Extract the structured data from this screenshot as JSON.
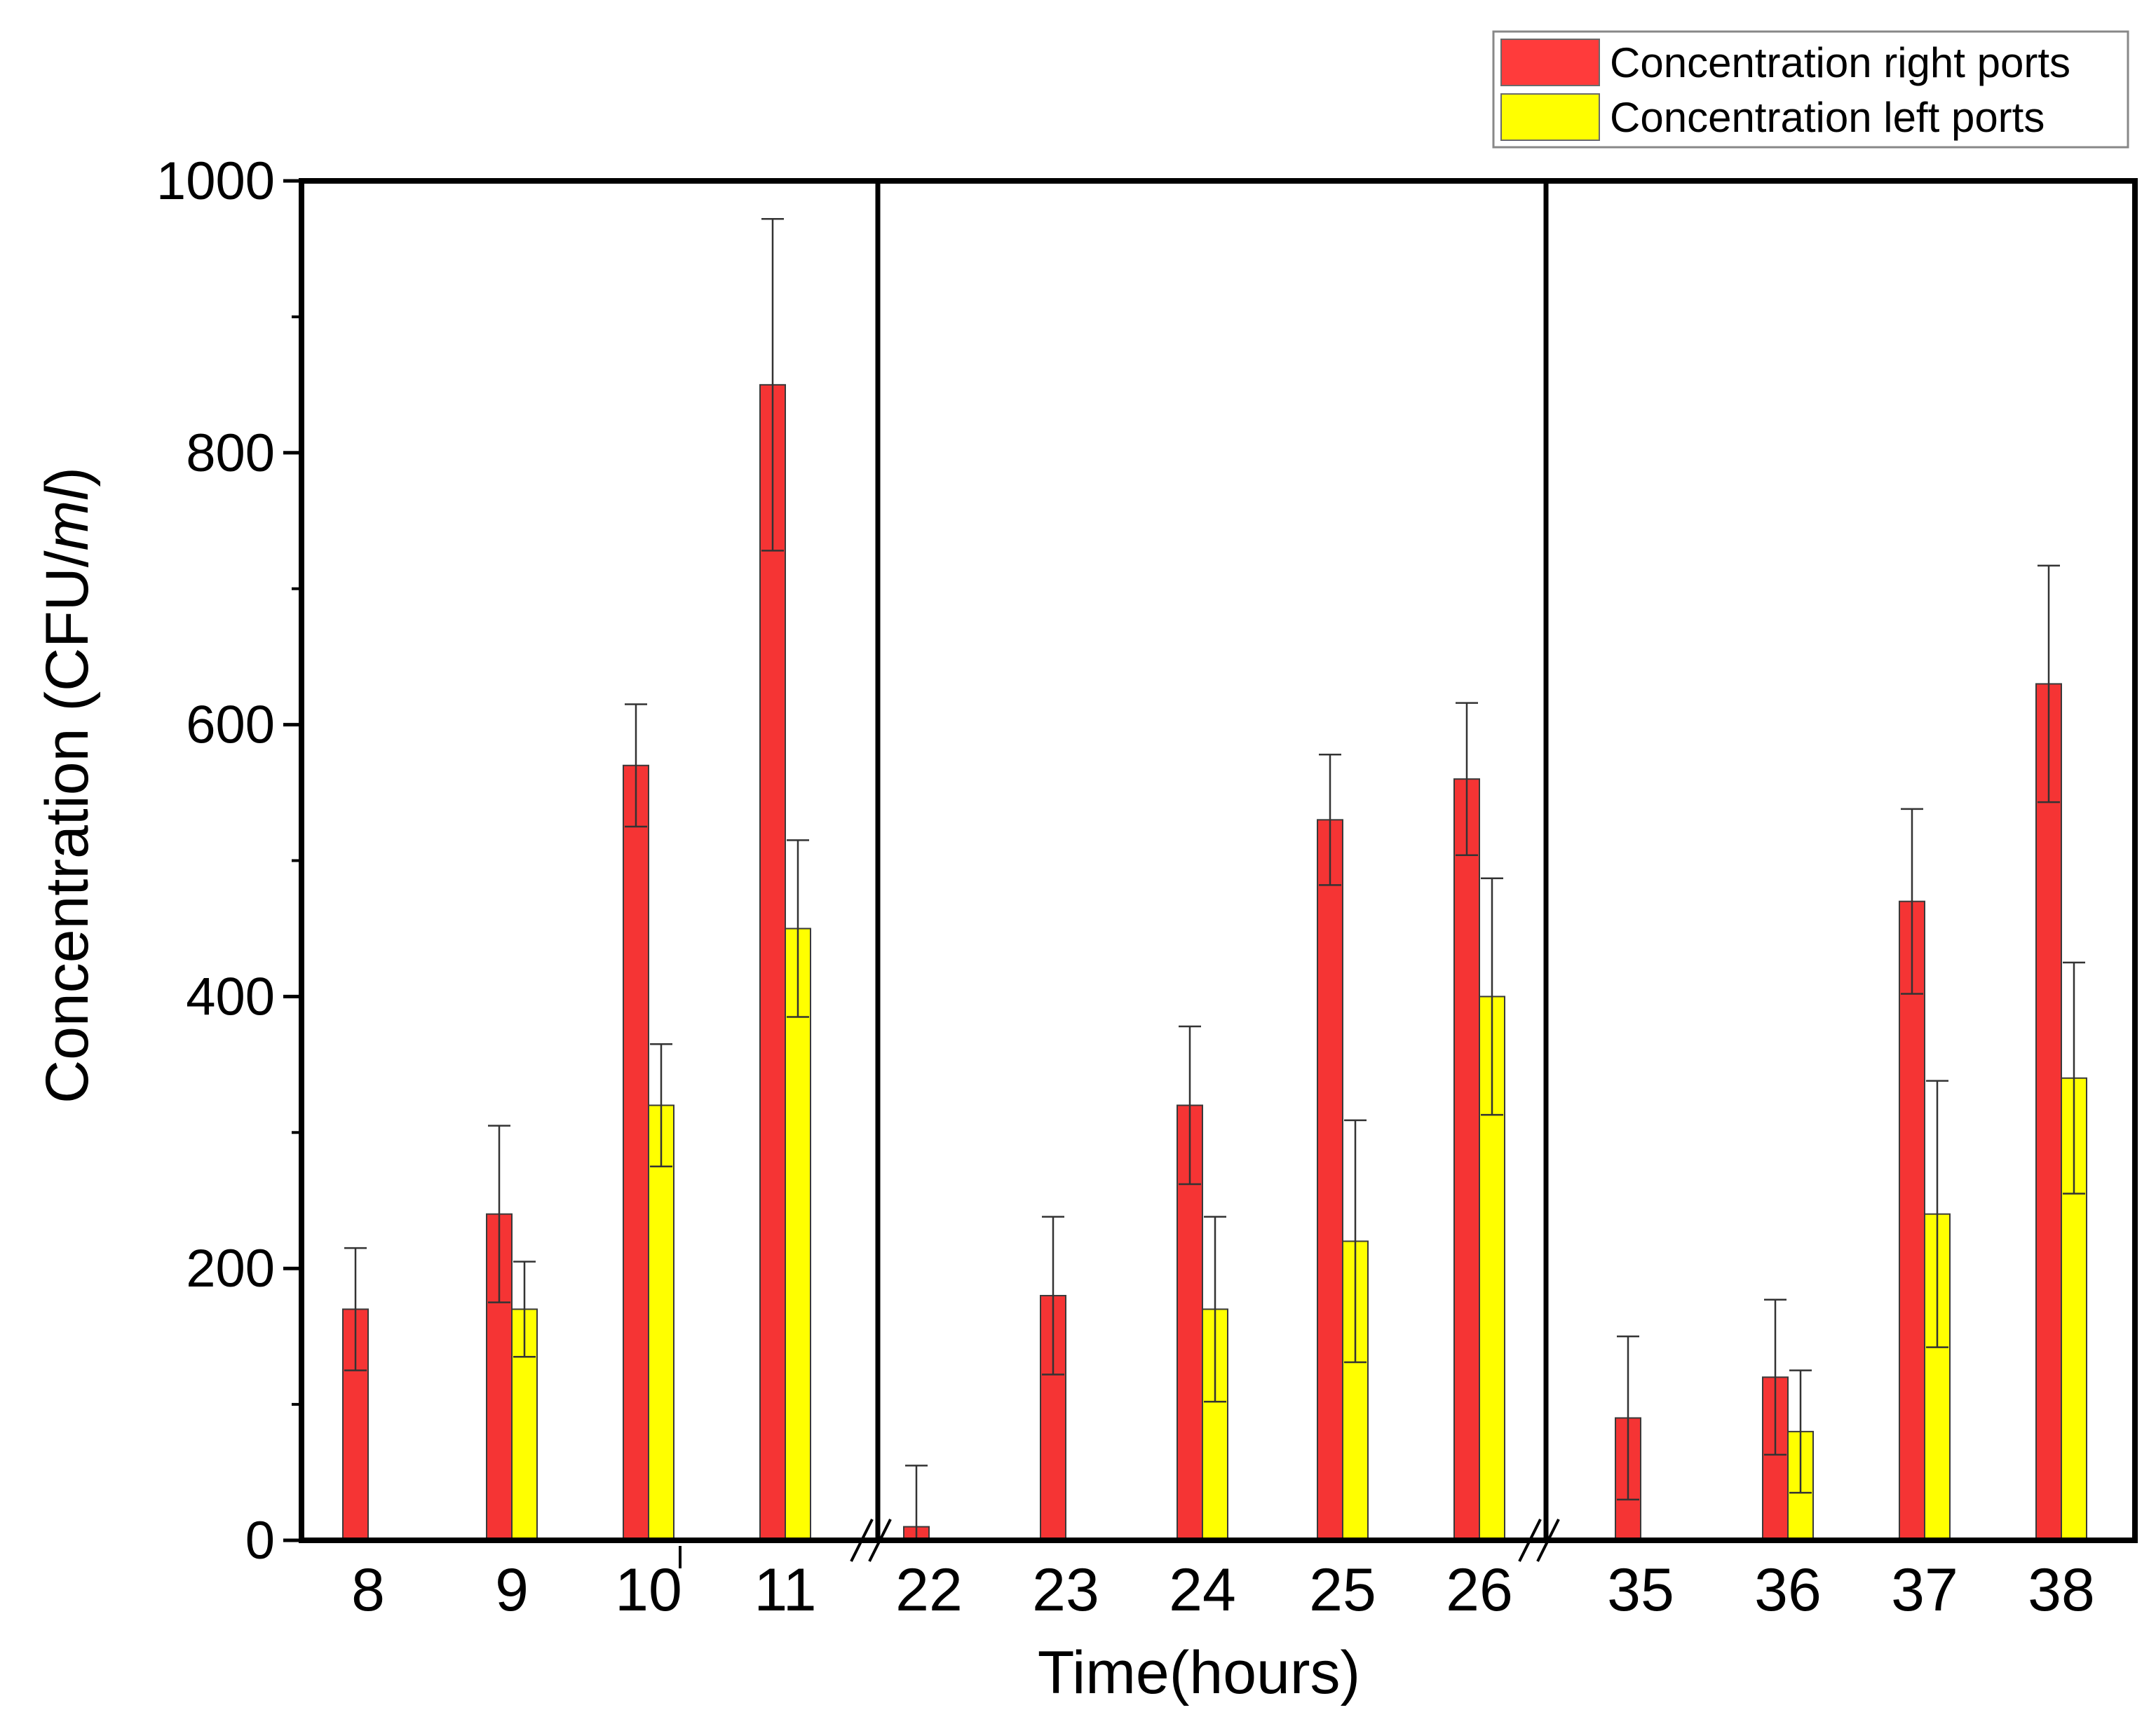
{
  "chart_data": {
    "type": "bar",
    "title": "",
    "xlabel": "Time(hours)",
    "ylabel": {
      "prefix": "Concentration (CFU/",
      "italic": "ml",
      "suffix": ")"
    },
    "ylim": [
      0,
      1000
    ],
    "yticks": [
      "0",
      "200",
      "400",
      "600",
      "800",
      "1000"
    ],
    "legend_position": "top-right, outside plot",
    "categories": [
      "8",
      "9",
      "10",
      "11",
      "22",
      "23",
      "24",
      "25",
      "26",
      "35",
      "36",
      "37",
      "38"
    ],
    "panels": [
      {
        "categories": [
          "8",
          "9",
          "10",
          "11"
        ]
      },
      {
        "categories": [
          "22",
          "23",
          "24",
          "25",
          "26"
        ]
      },
      {
        "categories": [
          "35",
          "36",
          "37",
          "38"
        ]
      }
    ],
    "series": [
      {
        "name": "Concentration right ports",
        "color": "#f53434",
        "values": [
          170,
          240,
          570,
          850,
          10,
          180,
          320,
          530,
          560,
          90,
          120,
          470,
          630
        ],
        "errors": [
          45,
          65,
          45,
          122,
          45,
          58,
          58,
          48,
          56,
          60,
          57,
          68,
          87
        ]
      },
      {
        "name": "Concentration left ports",
        "color": "#ffff00",
        "values": [
          0,
          170,
          320,
          450,
          0,
          0,
          170,
          220,
          400,
          0,
          80,
          240,
          340
        ],
        "errors": [
          0,
          35,
          45,
          65,
          0,
          0,
          68,
          89,
          87,
          0,
          45,
          98,
          85
        ]
      }
    ]
  }
}
